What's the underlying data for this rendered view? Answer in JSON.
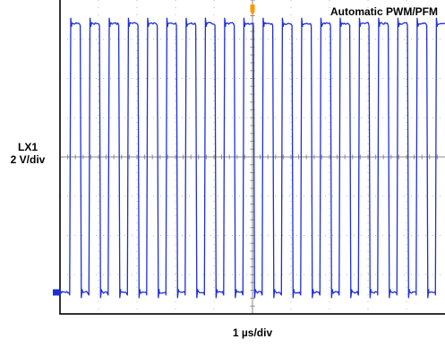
{
  "annotation": "Automatic PWM/PFM",
  "chart_data": {
    "type": "line",
    "channel_label": "LX1",
    "y_scale_label": "2 V/div",
    "x_scale_label": "1 µs/div",
    "x_unit": "µs",
    "y_unit": "V",
    "xlim": [
      0,
      10
    ],
    "ylim": [
      -8,
      8
    ],
    "grid": true,
    "grid_divisions": {
      "x": 10,
      "y": 8
    },
    "series": [
      {
        "color": "#1f2fd6",
        "waveform": "square",
        "period_us": 0.5,
        "cycles_visible": 20,
        "high_level_div": 3.4,
        "low_level_div": -3.45,
        "duty_cycle": 0.55,
        "first_rise_us": 0.25
      }
    ],
    "trigger_marker_color": "#ff9900",
    "ground_marker_color": "#1f2fd6"
  }
}
